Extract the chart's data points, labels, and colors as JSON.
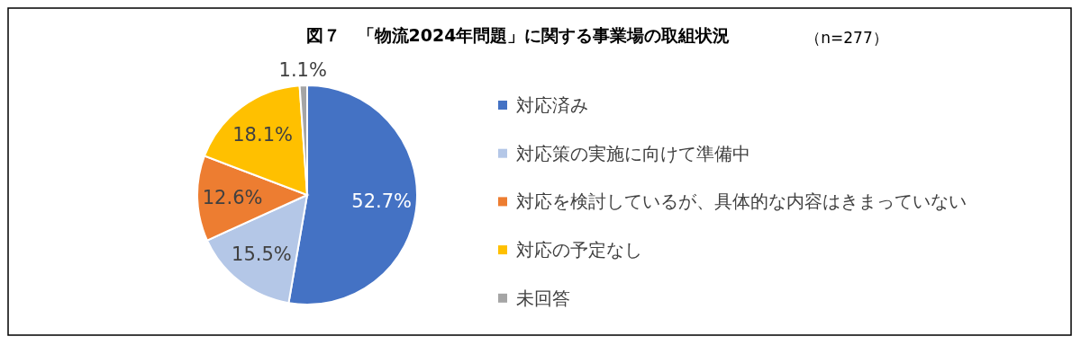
{
  "chart_data": {
    "type": "pie",
    "title": "図７　「物流2024年問題」に関する事業場の取組状況",
    "subtitle": "（n=277）",
    "categories": [
      "対応済み",
      "対応策の実施に向けて準備中",
      "対応を検討しているが、具体的な内容はきまっていない",
      "対応の予定なし",
      "未回答"
    ],
    "values": [
      52.7,
      15.5,
      12.6,
      18.1,
      1.1
    ],
    "colors": [
      "#4472c4",
      "#b4c7e7",
      "#ed7d31",
      "#ffc000",
      "#a5a5a5"
    ],
    "value_labels": [
      "52.7%",
      "15.5%",
      "12.6%",
      "18.1%",
      "1.1%"
    ],
    "legend": "right"
  }
}
